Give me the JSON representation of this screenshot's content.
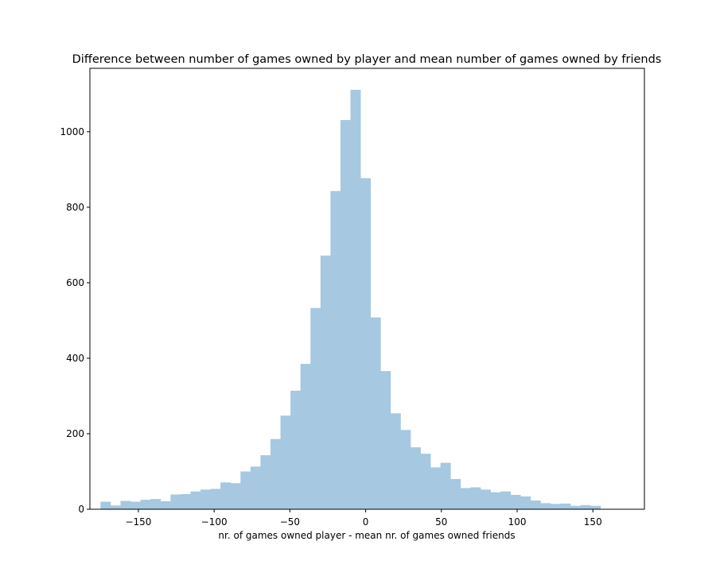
{
  "chart_data": {
    "type": "bar",
    "title": "Difference between number of games owned by player and mean number of games owned by friends",
    "xlabel": "nr. of games owned player -  mean nr. of games owned friends",
    "ylabel": "",
    "xlim": [
      -182,
      184
    ],
    "ylim": [
      0,
      1168
    ],
    "xticks": [
      -150,
      -100,
      -50,
      0,
      50,
      100,
      150
    ],
    "xtick_labels": [
      "−150",
      "−100",
      "−50",
      "0",
      "50",
      "100",
      "150"
    ],
    "yticks": [
      0,
      200,
      400,
      600,
      800,
      1000
    ],
    "ytick_labels": [
      "0",
      "200",
      "400",
      "600",
      "800",
      "1000"
    ],
    "bar_color": "#a6c8e0",
    "bin_start": -175,
    "bin_width": 6.6,
    "values": [
      20,
      10,
      22,
      20,
      25,
      27,
      21,
      39,
      40,
      47,
      52,
      54,
      71,
      69,
      100,
      113,
      143,
      186,
      248,
      314,
      385,
      533,
      672,
      843,
      1031,
      1111,
      877,
      508,
      366,
      254,
      210,
      164,
      147,
      111,
      123,
      80,
      56,
      58,
      52,
      45,
      47,
      38,
      34,
      23,
      16,
      14,
      15,
      9,
      11,
      9
    ],
    "grid": false,
    "legend": "none"
  }
}
